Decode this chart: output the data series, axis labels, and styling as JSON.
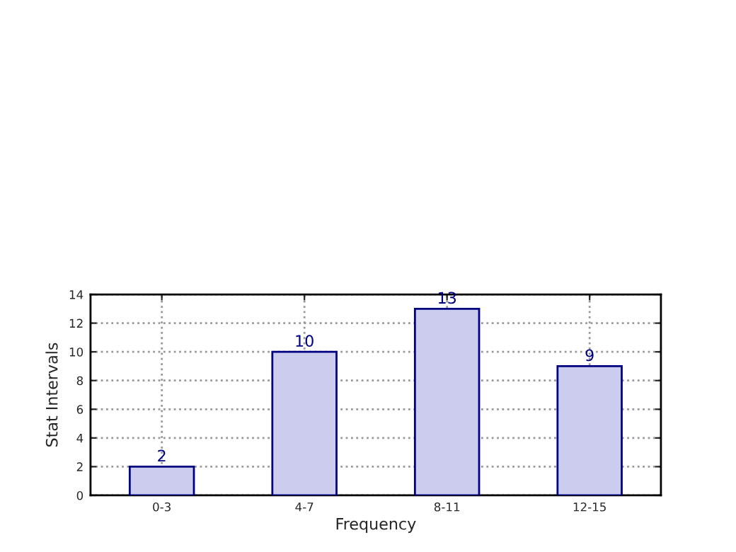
{
  "chart_data": {
    "type": "bar",
    "xlabel": "Frequency",
    "ylabel": "Stat Intervals",
    "categories": [
      "0-3",
      "4-7",
      "8-11",
      "12-15"
    ],
    "values": [
      2,
      10,
      13,
      9
    ],
    "color": "#ccccee",
    "ylim": [
      0,
      14
    ],
    "yticks": [
      0,
      2,
      4,
      6,
      8,
      10,
      12,
      14
    ],
    "grid": true,
    "data_labels": true
  }
}
